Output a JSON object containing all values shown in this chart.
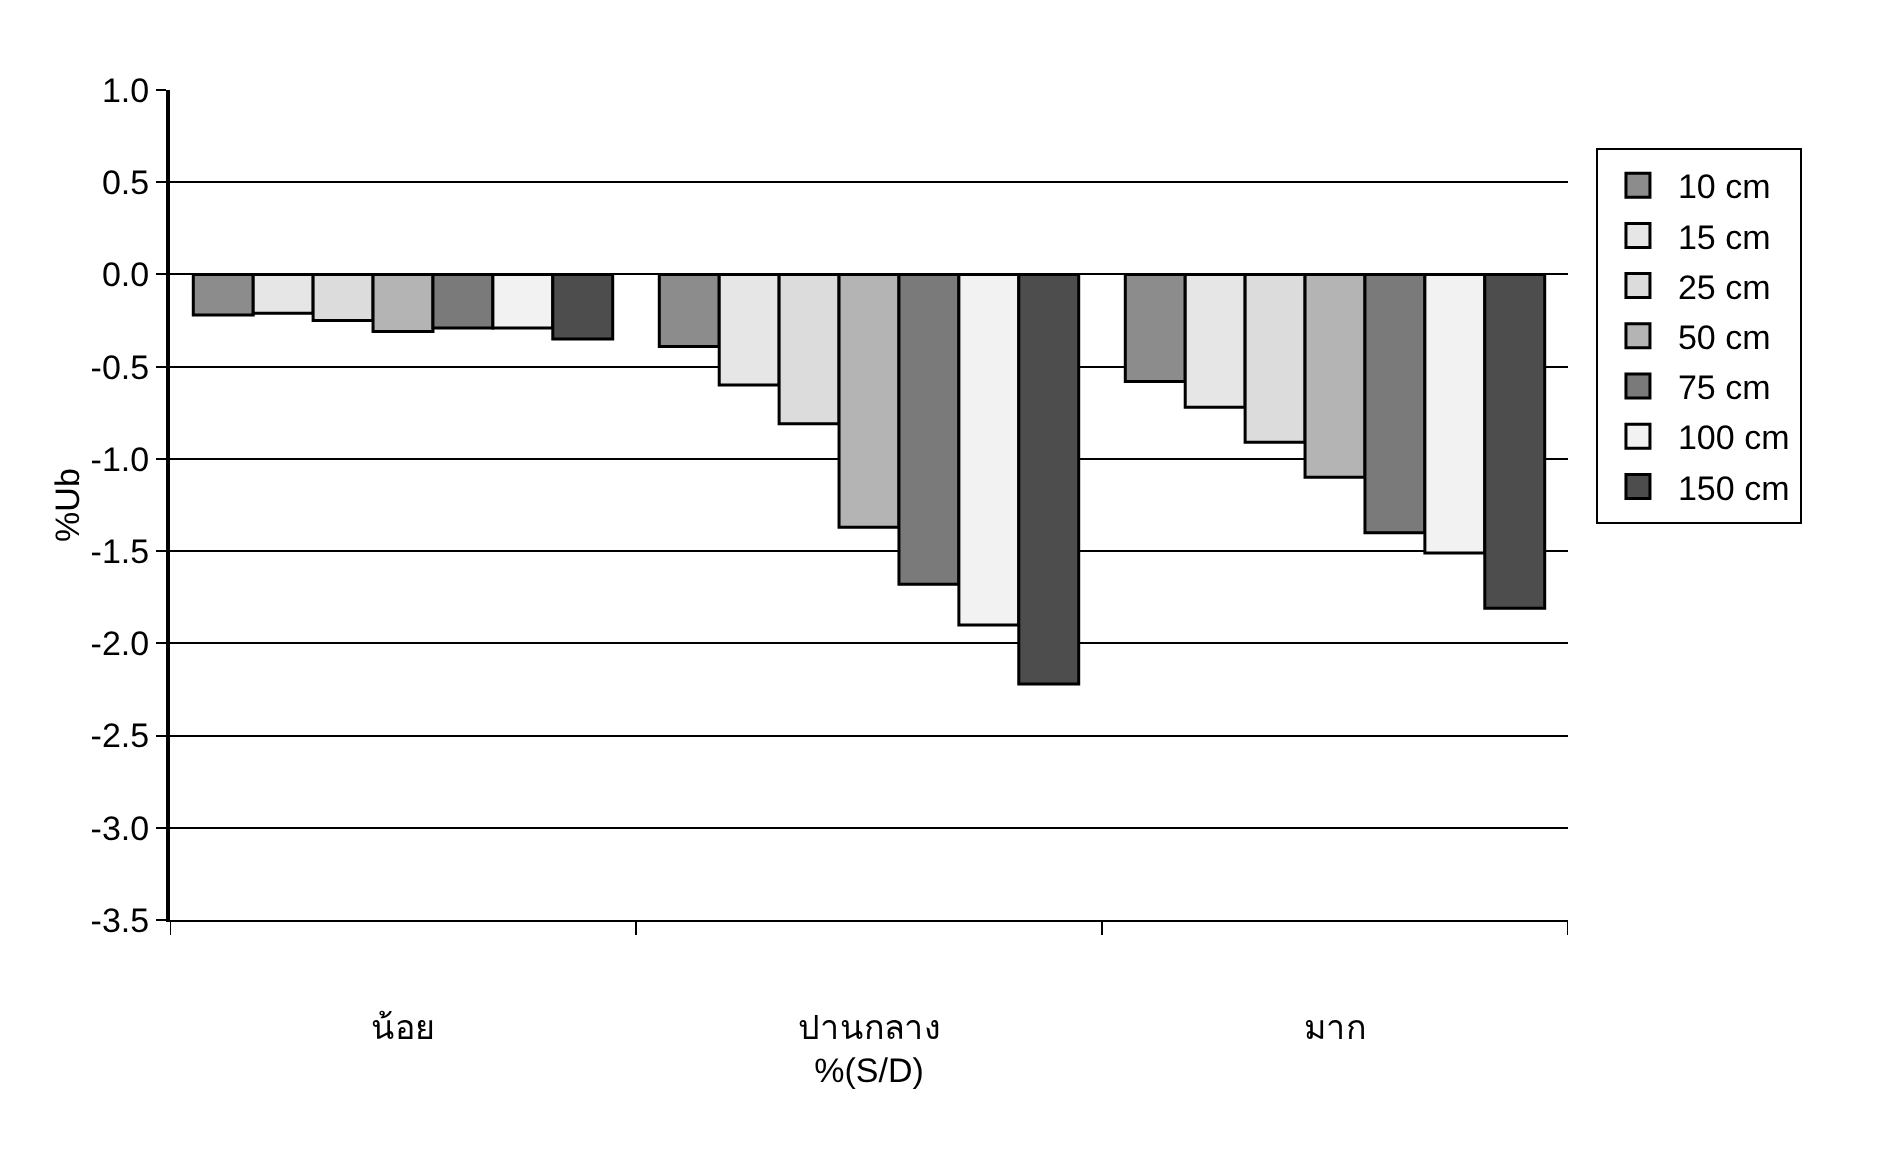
{
  "chart_data": {
    "type": "bar",
    "xlabel": "%(S/D)",
    "ylabel": "%Ub",
    "categories": [
      "น้อย",
      "ปานกลาง",
      "มาก"
    ],
    "series": [
      {
        "name": "10 cm",
        "color": "#8c8c8c",
        "values": [
          -0.22,
          -0.39,
          -0.58
        ]
      },
      {
        "name": "15 cm",
        "color": "#e6e6e6",
        "values": [
          -0.21,
          -0.6,
          -0.72
        ]
      },
      {
        "name": "25 cm",
        "color": "#dcdcdc",
        "values": [
          -0.25,
          -0.81,
          -0.91
        ]
      },
      {
        "name": "50 cm",
        "color": "#b4b4b4",
        "values": [
          -0.31,
          -1.37,
          -1.1
        ]
      },
      {
        "name": "75 cm",
        "color": "#7a7a7a",
        "values": [
          -0.29,
          -1.68,
          -1.4
        ]
      },
      {
        "name": "100 cm",
        "color": "#f2f2f2",
        "values": [
          -0.29,
          -1.9,
          -1.51
        ]
      },
      {
        "name": "150 cm",
        "color": "#4d4d4d",
        "values": [
          -0.35,
          -2.22,
          -1.81
        ]
      }
    ],
    "ylim": [
      -3.5,
      1.0
    ],
    "yticks": [
      {
        "value": -3.5,
        "label": "-3.5"
      },
      {
        "value": -3,
        "label": "-3.0"
      },
      {
        "value": -2.5,
        "label": "-2.5"
      },
      {
        "value": -2,
        "label": "-2.0"
      },
      {
        "value": -1.5,
        "label": "-1.5"
      },
      {
        "value": -1,
        "label": "-1.0"
      },
      {
        "value": -0.5,
        "label": "-0.5"
      },
      {
        "value": 0,
        "label": "0.0"
      },
      {
        "value": 0.5,
        "label": "0.5"
      },
      {
        "value": 1,
        "label": "1.0"
      }
    ],
    "grid": "y",
    "legend": "right"
  }
}
